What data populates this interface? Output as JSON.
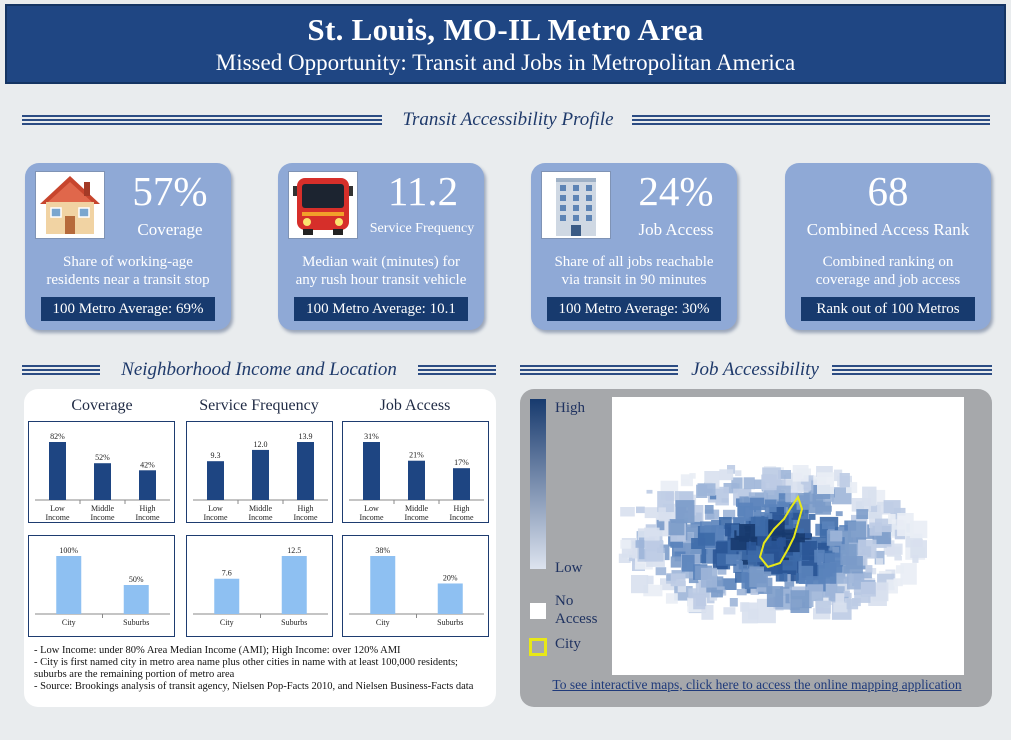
{
  "header": {
    "title": "St. Louis, MO-IL Metro Area",
    "subtitle": "Missed Opportunity: Transit and Jobs in Metropolitan America"
  },
  "sections": {
    "profile": "Transit Accessibility Profile",
    "income": "Neighborhood Income and Location",
    "job": "Job Accessibility"
  },
  "cards": [
    {
      "icon": "house-icon",
      "value": "57%",
      "label": "Coverage",
      "desc_line1": "Share of working-age",
      "desc_line2": "residents near a transit stop",
      "benchmark": "100 Metro Average: 69%"
    },
    {
      "icon": "bus-icon",
      "value": "11.2",
      "label": "Service Frequency",
      "desc_line1": "Median wait (minutes) for",
      "desc_line2": "any rush hour transit vehicle",
      "benchmark": "100 Metro Average: 10.1"
    },
    {
      "icon": "building-icon",
      "value": "24%",
      "label": "Job Access",
      "desc_line1": "Share of all jobs reachable",
      "desc_line2": "via transit in 90 minutes",
      "benchmark": "100 Metro Average: 30%"
    },
    {
      "icon": "",
      "value": "68",
      "label": "Combined Access Rank",
      "desc_line1": "Combined ranking on",
      "desc_line2": "coverage and job access",
      "benchmark": "Rank out of 100 Metros"
    }
  ],
  "columns": [
    "Coverage",
    "Service Frequency",
    "Job Access"
  ],
  "chart_data": [
    {
      "type": "bar",
      "name": "coverage-income",
      "categories": [
        [
          "Low",
          "Income"
        ],
        [
          "Middle",
          "Income"
        ],
        [
          "High",
          "Income"
        ]
      ],
      "values": [
        82,
        52,
        42
      ],
      "labels": [
        "82%",
        "52%",
        "42%"
      ],
      "color": "#1e4582"
    },
    {
      "type": "bar",
      "name": "frequency-income",
      "categories": [
        [
          "Low",
          "Income"
        ],
        [
          "Middle",
          "Income"
        ],
        [
          "High",
          "Income"
        ]
      ],
      "values": [
        9.3,
        12.0,
        13.9
      ],
      "labels": [
        "9.3",
        "12.0",
        "13.9"
      ],
      "color": "#1e4582"
    },
    {
      "type": "bar",
      "name": "jobaccess-income",
      "categories": [
        [
          "Low",
          "Income"
        ],
        [
          "Middle",
          "Income"
        ],
        [
          "High",
          "Income"
        ]
      ],
      "values": [
        31,
        21,
        17
      ],
      "labels": [
        "31%",
        "21%",
        "17%"
      ],
      "color": "#1e4582"
    },
    {
      "type": "bar",
      "name": "coverage-location",
      "categories": [
        [
          "City"
        ],
        [
          "Suburbs"
        ]
      ],
      "values": [
        100,
        50
      ],
      "labels": [
        "100%",
        "50%"
      ],
      "color": "#8ec0f2"
    },
    {
      "type": "bar",
      "name": "frequency-location",
      "categories": [
        [
          "City"
        ],
        [
          "Suburbs"
        ]
      ],
      "values": [
        7.6,
        12.5
      ],
      "labels": [
        "7.6",
        "12.5"
      ],
      "color": "#8ec0f2"
    },
    {
      "type": "bar",
      "name": "jobaccess-location",
      "categories": [
        [
          "City"
        ],
        [
          "Suburbs"
        ]
      ],
      "values": [
        38,
        20
      ],
      "labels": [
        "38%",
        "20%"
      ],
      "color": "#8ec0f2"
    }
  ],
  "notes": [
    "- Low Income: under 80% Area Median Income (AMI); High Income: over 120% AMI",
    "- City is first named city in metro area name plus other cities in name with at least 100,000 residents; suburbs are the remaining portion of metro area",
    "- Source: Brookings analysis of transit agency, Nielsen Pop-Facts 2010, and Nielsen Business-Facts data"
  ],
  "legend": {
    "high": "High",
    "low": "Low",
    "no_access_1": "No",
    "no_access_2": "Access",
    "city": "City",
    "colors": {
      "high": "#173a6e",
      "low": "#dde3ef",
      "city": "#e8e817"
    }
  },
  "map_link": "To see interactive maps, click here to access the online mapping application"
}
